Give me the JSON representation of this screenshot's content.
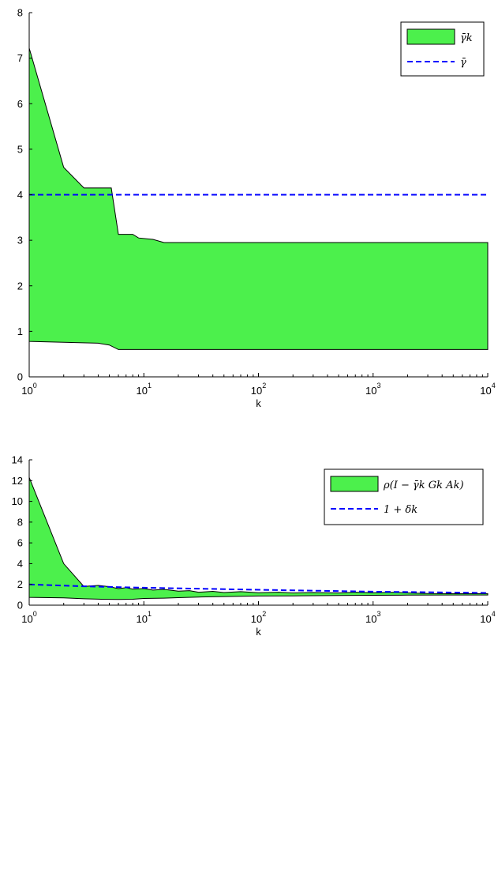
{
  "chart_data": [
    {
      "type": "area",
      "xlabel": "k",
      "ylabel": "",
      "title": "",
      "xscale": "log",
      "xlim": [
        1,
        10000
      ],
      "ylim": [
        0,
        8
      ],
      "xticks": [
        {
          "base": "10",
          "exp": "0"
        },
        {
          "base": "10",
          "exp": "1"
        },
        {
          "base": "10",
          "exp": "2"
        },
        {
          "base": "10",
          "exp": "3"
        },
        {
          "base": "10",
          "exp": "4"
        }
      ],
      "yticks": [
        "0",
        "1",
        "2",
        "3",
        "4",
        "5",
        "6",
        "7",
        "8"
      ],
      "legend_position": "top-right",
      "legend": [
        "γ̄k",
        "γ̄"
      ],
      "band": {
        "name": "γ̄k",
        "color": "#4cf04c",
        "upper": [
          [
            1,
            7.22
          ],
          [
            2,
            4.6
          ],
          [
            3,
            4.15
          ],
          [
            5.2,
            4.15
          ],
          [
            6,
            3.13
          ],
          [
            8,
            3.13
          ],
          [
            9,
            3.05
          ],
          [
            12,
            3.02
          ],
          [
            15,
            2.95
          ],
          [
            10000,
            2.95
          ]
        ],
        "lower": [
          [
            1,
            0.78
          ],
          [
            2,
            0.76
          ],
          [
            4,
            0.74
          ],
          [
            5,
            0.7
          ],
          [
            6,
            0.6
          ],
          [
            10000,
            0.6
          ]
        ]
      },
      "line": {
        "name": "γ̄",
        "color": "#0000ff",
        "points": [
          [
            1,
            4.0
          ],
          [
            10000,
            4.0
          ]
        ]
      }
    },
    {
      "type": "area",
      "xlabel": "k",
      "ylabel": "",
      "title": "",
      "xscale": "log",
      "xlim": [
        1,
        10000
      ],
      "ylim": [
        0,
        14
      ],
      "xticks": [
        {
          "base": "10",
          "exp": "0"
        },
        {
          "base": "10",
          "exp": "1"
        },
        {
          "base": "10",
          "exp": "2"
        },
        {
          "base": "10",
          "exp": "3"
        },
        {
          "base": "10",
          "exp": "4"
        }
      ],
      "yticks": [
        "0",
        "2",
        "4",
        "6",
        "8",
        "10",
        "12",
        "14"
      ],
      "legend_position": "top-right",
      "legend": [
        "ρ(I − γ̄k Gk Ak)",
        "1 + δk"
      ],
      "band": {
        "name": "ρ(I − γ̄k Gk Ak)",
        "color": "#4cf04c",
        "upper": [
          [
            1,
            12.3
          ],
          [
            2,
            4.0
          ],
          [
            3,
            1.8
          ],
          [
            4,
            1.9
          ],
          [
            5,
            1.78
          ],
          [
            6,
            1.6
          ],
          [
            7,
            1.68
          ],
          [
            8,
            1.55
          ],
          [
            10,
            1.6
          ],
          [
            12,
            1.45
          ],
          [
            15,
            1.52
          ],
          [
            20,
            1.35
          ],
          [
            25,
            1.4
          ],
          [
            30,
            1.25
          ],
          [
            40,
            1.33
          ],
          [
            50,
            1.22
          ],
          [
            70,
            1.3
          ],
          [
            100,
            1.2
          ],
          [
            150,
            1.25
          ],
          [
            200,
            1.18
          ],
          [
            300,
            1.22
          ],
          [
            500,
            1.18
          ],
          [
            700,
            1.25
          ],
          [
            1000,
            1.2
          ],
          [
            1500,
            1.24
          ],
          [
            2000,
            1.18
          ],
          [
            3000,
            1.12
          ],
          [
            5000,
            1.1
          ],
          [
            10000,
            1.1
          ]
        ],
        "lower": [
          [
            1,
            0.75
          ],
          [
            2,
            0.7
          ],
          [
            3,
            0.62
          ],
          [
            4,
            0.58
          ],
          [
            6,
            0.55
          ],
          [
            8,
            0.57
          ],
          [
            10,
            0.65
          ],
          [
            15,
            0.68
          ],
          [
            20,
            0.72
          ],
          [
            30,
            0.78
          ],
          [
            50,
            0.83
          ],
          [
            100,
            0.88
          ],
          [
            200,
            0.9
          ],
          [
            500,
            0.93
          ],
          [
            1000,
            0.95
          ],
          [
            2000,
            0.97
          ],
          [
            5000,
            0.98
          ],
          [
            10000,
            0.98
          ]
        ]
      },
      "line": {
        "name": "1 + δk",
        "color": "#0000ff",
        "points": [
          [
            1,
            2.0
          ],
          [
            3,
            1.82
          ],
          [
            10,
            1.68
          ],
          [
            100,
            1.48
          ],
          [
            1000,
            1.3
          ],
          [
            10000,
            1.18
          ]
        ]
      }
    }
  ]
}
